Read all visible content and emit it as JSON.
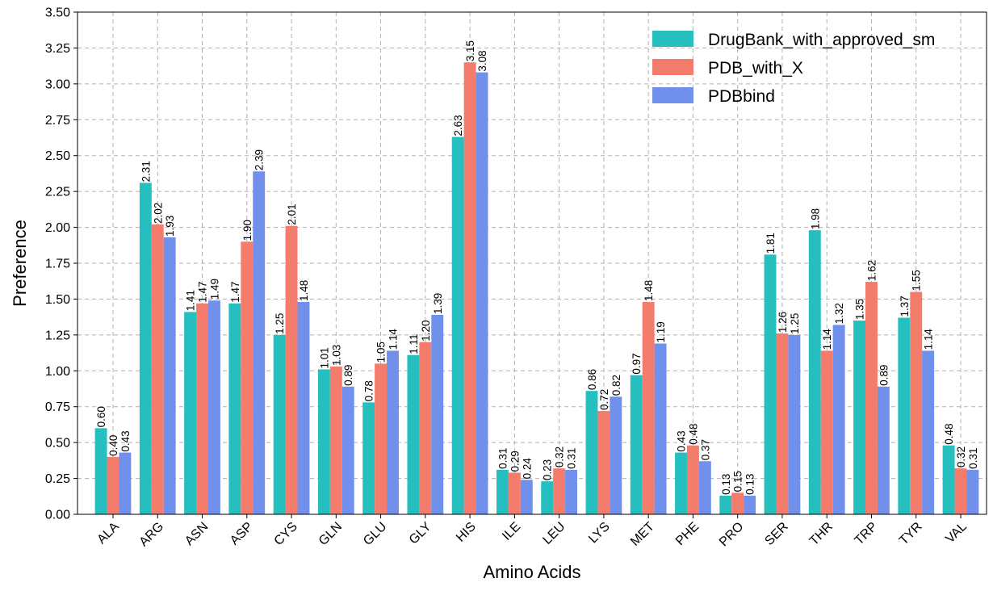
{
  "chart_data": {
    "type": "bar",
    "xlabel": "Amino Acids",
    "ylabel": "Preference",
    "ylim": [
      0,
      3.5
    ],
    "yticks": [
      "0.00",
      "0.25",
      "0.50",
      "0.75",
      "1.00",
      "1.25",
      "1.50",
      "1.75",
      "2.00",
      "2.25",
      "2.50",
      "2.75",
      "3.00",
      "3.25",
      "3.50"
    ],
    "grid": true,
    "legend_position": "top-right",
    "categories": [
      "ALA",
      "ARG",
      "ASN",
      "ASP",
      "CYS",
      "GLN",
      "GLU",
      "GLY",
      "HIS",
      "ILE",
      "LEU",
      "LYS",
      "MET",
      "PHE",
      "PRO",
      "SER",
      "THR",
      "TRP",
      "TYR",
      "VAL"
    ],
    "series": [
      {
        "name": "DrugBank_with_approved_sm",
        "color": "#26bfbf",
        "values": [
          0.6,
          2.31,
          1.41,
          1.47,
          1.25,
          1.01,
          0.78,
          1.11,
          2.63,
          0.31,
          0.23,
          0.86,
          0.97,
          0.43,
          0.13,
          1.81,
          1.98,
          1.35,
          1.37,
          0.48
        ],
        "labels": [
          "0.60",
          "2.31",
          "1.41",
          "1.47",
          "1.25",
          "1.01",
          "0.78",
          "1.11",
          "2.63",
          "0.31",
          "0.23",
          "0.86",
          "0.97",
          "0.43",
          "0.13",
          "1.81",
          "1.98",
          "1.35",
          "1.37",
          "0.48"
        ]
      },
      {
        "name": "PDB_with_X",
        "color": "#f47c6c",
        "values": [
          0.4,
          2.02,
          1.47,
          1.9,
          2.01,
          1.03,
          1.05,
          1.2,
          3.15,
          0.29,
          0.32,
          0.72,
          1.48,
          0.48,
          0.15,
          1.26,
          1.14,
          1.62,
          1.55,
          0.32
        ],
        "labels": [
          "0.40",
          "2.02",
          "1.47",
          "1.90",
          "2.01",
          "1.03",
          "1.05",
          "1.20",
          "3.15",
          "0.29",
          "0.32",
          "0.72",
          "1.48",
          "0.48",
          "0.15",
          "1.26",
          "1.14",
          "1.62",
          "1.55",
          "0.32"
        ]
      },
      {
        "name": "PDBbind",
        "color": "#7090ec",
        "values": [
          0.43,
          1.93,
          1.49,
          2.39,
          1.48,
          0.89,
          1.14,
          1.39,
          3.08,
          0.24,
          0.31,
          0.82,
          1.19,
          0.37,
          0.13,
          1.25,
          1.32,
          0.89,
          1.14,
          0.31
        ],
        "labels": [
          "0.43",
          "1.93",
          "1.49",
          "2.39",
          "1.48",
          "0.89",
          "1.14",
          "1.39",
          "3.08",
          "0.24",
          "0.31",
          "0.82",
          "1.19",
          "0.37",
          "0.13",
          "1.25",
          "1.32",
          "0.89",
          "1.14",
          "0.31"
        ]
      }
    ]
  }
}
